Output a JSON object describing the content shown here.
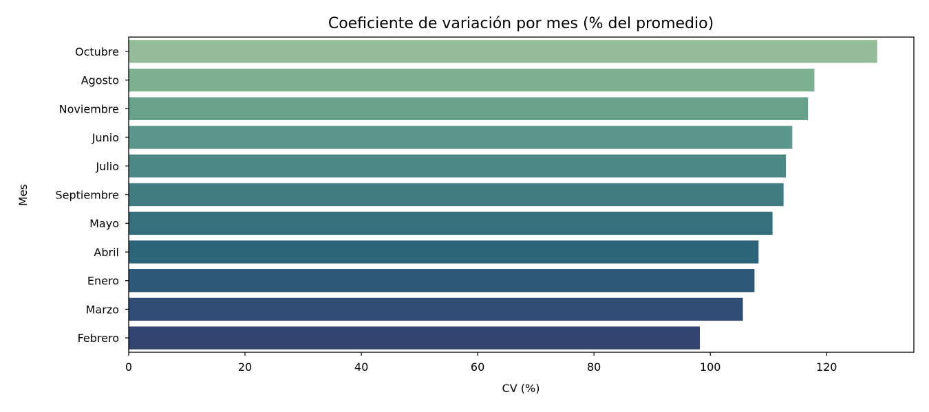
{
  "chart_data": {
    "type": "bar",
    "orientation": "horizontal",
    "title": "Coeficiente de variación por mes (% del promedio)",
    "xlabel": "CV (%)",
    "ylabel": "Mes",
    "xlim": [
      0,
      135
    ],
    "xticks": [
      0,
      20,
      40,
      60,
      80,
      100,
      120
    ],
    "grid": false,
    "categories": [
      "Octubre",
      "Agosto",
      "Noviembre",
      "Junio",
      "Julio",
      "Septiembre",
      "Mayo",
      "Abril",
      "Enero",
      "Marzo",
      "Febrero"
    ],
    "values": [
      128.7,
      117.9,
      116.8,
      114.1,
      113.0,
      112.6,
      110.7,
      108.3,
      107.6,
      105.6,
      98.2
    ],
    "colors": [
      "#95bb99",
      "#80b092",
      "#6aa18d",
      "#5d968a",
      "#4d8886",
      "#417c82",
      "#366f7c",
      "#2e6479",
      "#2d5977",
      "#2f4d74",
      "#33446f"
    ]
  }
}
